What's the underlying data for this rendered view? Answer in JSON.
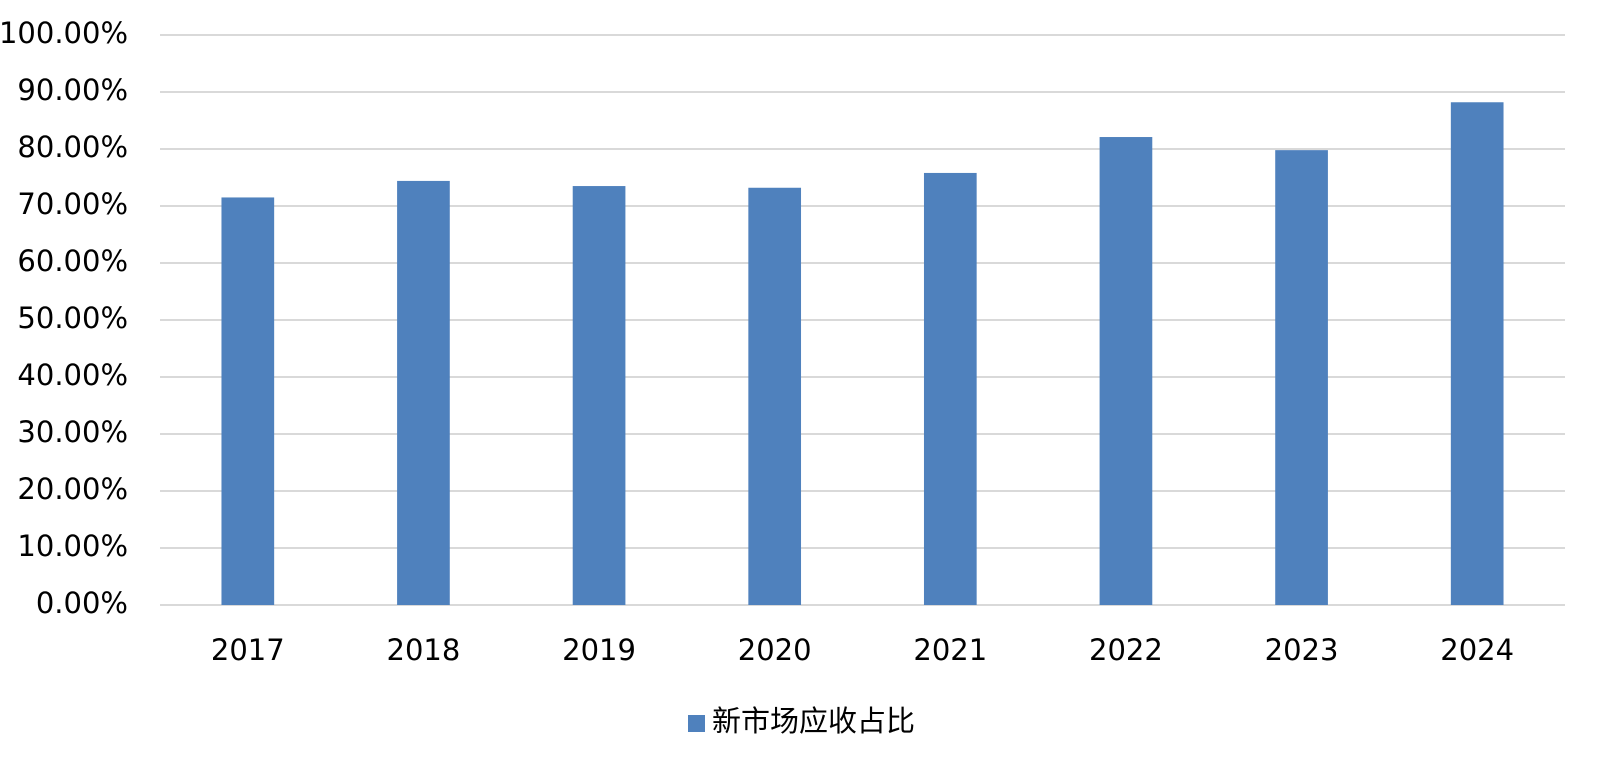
{
  "chart_data": {
    "type": "bar",
    "categories": [
      "2017",
      "2018",
      "2019",
      "2020",
      "2021",
      "2022",
      "2023",
      "2024"
    ],
    "series": [
      {
        "name": "新市场应收占比",
        "color": "#4f81bd",
        "values": [
          71.5,
          74.4,
          73.5,
          73.2,
          75.8,
          82.1,
          79.8,
          88.2
        ]
      }
    ],
    "ylim": [
      0,
      100
    ],
    "yticks": [
      {
        "value": 0,
        "label": "0.00%"
      },
      {
        "value": 10,
        "label": "10.00%"
      },
      {
        "value": 20,
        "label": "20.00%"
      },
      {
        "value": 30,
        "label": "30.00%"
      },
      {
        "value": 40,
        "label": "40.00%"
      },
      {
        "value": 50,
        "label": "50.00%"
      },
      {
        "value": 60,
        "label": "60.00%"
      },
      {
        "value": 70,
        "label": "70.00%"
      },
      {
        "value": 80,
        "label": "80.00%"
      },
      {
        "value": 90,
        "label": "90.00%"
      },
      {
        "value": 100,
        "label": "100.00%"
      }
    ],
    "grid": true,
    "legend": "bottom"
  }
}
